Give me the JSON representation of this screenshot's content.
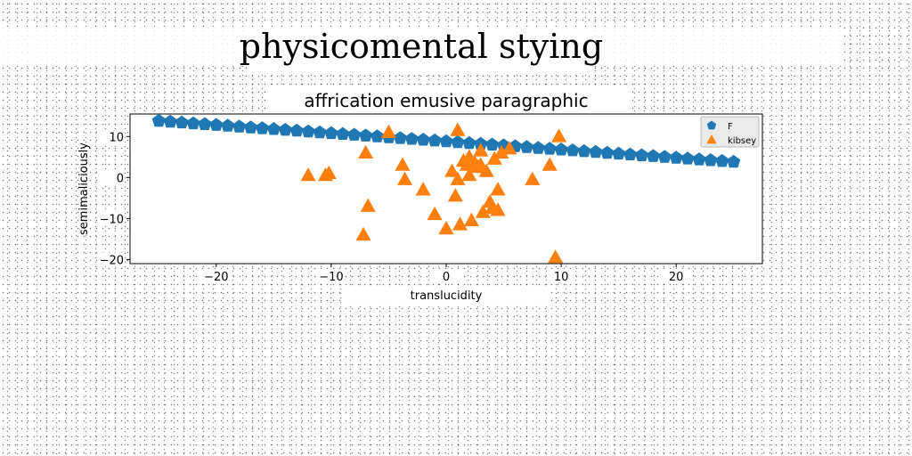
{
  "page_title": "physicomental stying",
  "chart_data": {
    "type": "scatter",
    "title": "affrication emusive paragraphic",
    "xlabel": "translucidity",
    "ylabel": "semimaliciously",
    "xlim": [
      -27.5,
      27.5
    ],
    "ylim": [
      -21,
      15.5
    ],
    "xticks": [
      -20,
      -10,
      0,
      10,
      20
    ],
    "yticks": [
      -20,
      -10,
      0,
      10
    ],
    "xtick_labels": [
      "−20",
      "−10",
      "0",
      "10",
      "20"
    ],
    "ytick_labels": [
      "−20",
      "−10",
      "0",
      "10"
    ],
    "grid": false,
    "legend_position": "top-right",
    "series": [
      {
        "name": "F",
        "marker": "pentagon",
        "color": "#1f77b4",
        "x": [
          -25,
          -24,
          -23,
          -22,
          -21,
          -20,
          -19,
          -18,
          -17,
          -16,
          -15,
          -14,
          -13,
          -12,
          -11,
          -10,
          -9,
          -8,
          -7,
          -6,
          -5,
          -4,
          -3,
          -2,
          -1,
          0,
          1,
          2,
          3,
          4,
          5,
          6,
          7,
          8,
          9,
          10,
          11,
          12,
          13,
          14,
          15,
          16,
          17,
          18,
          19,
          20,
          21,
          22,
          23,
          24,
          25
        ],
        "y": [
          13.8,
          13.6,
          13.4,
          13.2,
          13.0,
          12.8,
          12.6,
          12.4,
          12.2,
          12.0,
          11.8,
          11.6,
          11.4,
          11.2,
          11.0,
          10.8,
          10.6,
          10.4,
          10.2,
          10.0,
          9.8,
          9.6,
          9.4,
          9.2,
          9.0,
          8.8,
          8.6,
          8.4,
          8.2,
          8.0,
          7.8,
          7.6,
          7.4,
          7.2,
          7.0,
          6.8,
          6.6,
          6.4,
          6.2,
          6.0,
          5.8,
          5.6,
          5.4,
          5.2,
          5.0,
          4.8,
          4.6,
          4.4,
          4.2,
          4.0,
          3.8
        ]
      },
      {
        "name": "kibsey",
        "marker": "triangle",
        "color": "#ff7f0e",
        "x": [
          -12,
          -10.5,
          -10.2,
          -7,
          -6.8,
          -7.2,
          -5,
          -3.8,
          -3.6,
          -2,
          -1,
          0,
          0.5,
          0.8,
          1,
          1,
          1.2,
          1.5,
          1.8,
          2,
          2,
          2.2,
          2.5,
          2.8,
          3,
          3,
          3.2,
          3.5,
          3.8,
          4,
          4.2,
          4.5,
          4.5,
          4.8,
          5.5,
          7.5,
          9,
          9.5,
          9.8
        ],
        "y": [
          0.5,
          0.5,
          1,
          6,
          -7,
          -14,
          11,
          3,
          -0.5,
          -3,
          -9,
          -12.5,
          1.5,
          -4.5,
          11.5,
          -0.5,
          -11.5,
          4,
          3,
          5,
          0.5,
          -10.5,
          3.5,
          2.5,
          3,
          6.5,
          -8.5,
          1.5,
          -6,
          -7.5,
          4.5,
          -8,
          -3,
          6,
          7,
          -0.5,
          3,
          -19.5,
          10
        ]
      }
    ]
  }
}
